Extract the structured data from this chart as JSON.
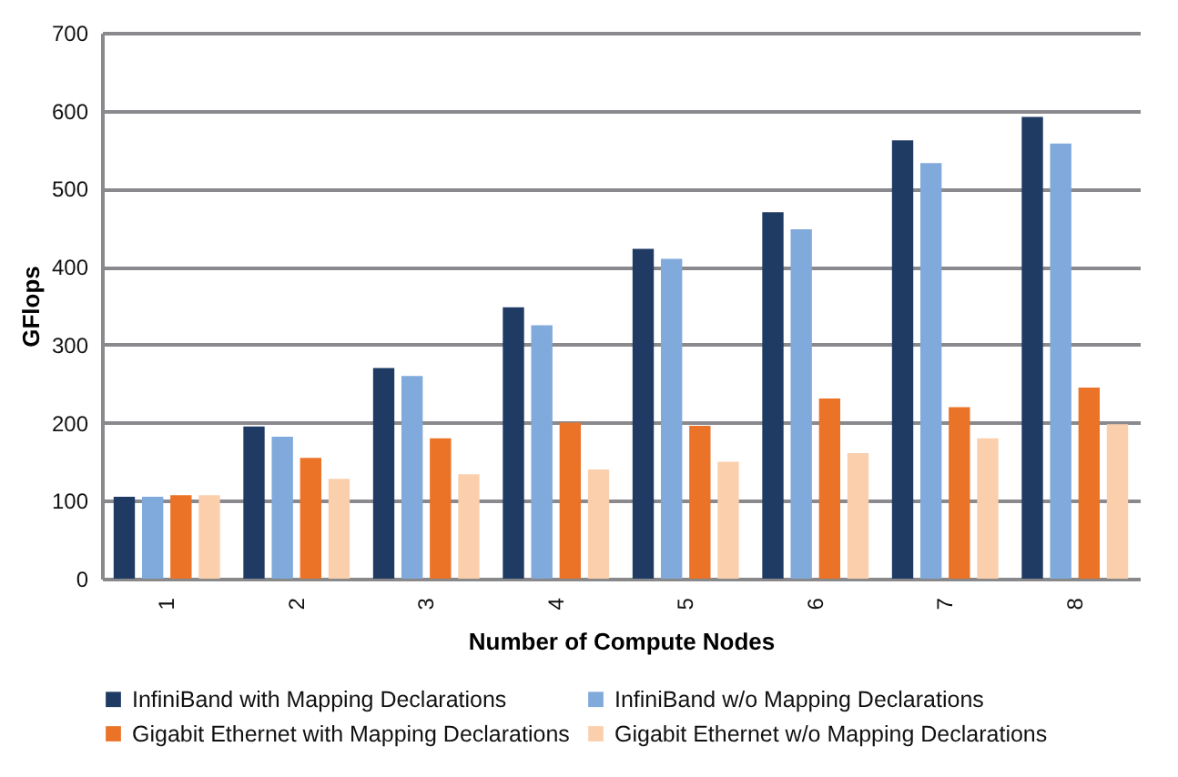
{
  "chart_data": {
    "type": "bar",
    "xlabel": "Number of Compute Nodes",
    "ylabel": "GFlops",
    "categories": [
      "1",
      "2",
      "3",
      "4",
      "5",
      "6",
      "7",
      "8"
    ],
    "series": [
      {
        "name": "InfiniBand with Mapping Declarations",
        "color": "#1f3a63",
        "values": [
          105,
          195,
          270,
          348,
          423,
          470,
          562,
          592
        ]
      },
      {
        "name": "InfiniBand w/o Mapping Declarations",
        "color": "#7faadb",
        "values": [
          105,
          182,
          260,
          325,
          410,
          448,
          533,
          558
        ]
      },
      {
        "name": "Gigabit Ethernet with Mapping Declarations",
        "color": "#ea7328",
        "values": [
          107,
          155,
          180,
          200,
          196,
          231,
          220,
          245
        ]
      },
      {
        "name": "Gigabit Ethernet w/o Mapping Declarations",
        "color": "#fbcfac",
        "values": [
          107,
          128,
          134,
          140,
          150,
          161,
          180,
          198
        ]
      }
    ],
    "ylim": [
      0,
      700
    ],
    "yticks": [
      0,
      100,
      200,
      300,
      400,
      500,
      600,
      700
    ],
    "grid": "y",
    "legend": "bottom"
  }
}
